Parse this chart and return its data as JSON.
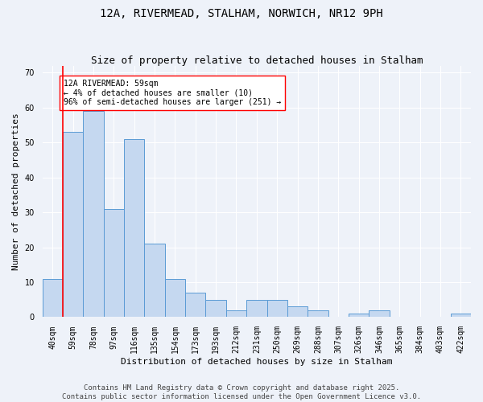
{
  "title1": "12A, RIVERMEAD, STALHAM, NORWICH, NR12 9PH",
  "title2": "Size of property relative to detached houses in Stalham",
  "xlabel": "Distribution of detached houses by size in Stalham",
  "ylabel": "Number of detached properties",
  "categories": [
    "40sqm",
    "59sqm",
    "78sqm",
    "97sqm",
    "116sqm",
    "135sqm",
    "154sqm",
    "173sqm",
    "193sqm",
    "212sqm",
    "231sqm",
    "250sqm",
    "269sqm",
    "288sqm",
    "307sqm",
    "326sqm",
    "346sqm",
    "365sqm",
    "384sqm",
    "403sqm",
    "422sqm"
  ],
  "values": [
    11,
    53,
    59,
    31,
    51,
    21,
    11,
    7,
    5,
    2,
    5,
    5,
    3,
    2,
    0,
    1,
    2,
    0,
    0,
    0,
    1
  ],
  "bar_color": "#c5d8f0",
  "bar_edge_color": "#5b9bd5",
  "red_line_x": 0.5,
  "annotation_text": "12A RIVERMEAD: 59sqm\n← 4% of detached houses are smaller (10)\n96% of semi-detached houses are larger (251) →",
  "ylim": [
    0,
    72
  ],
  "yticks": [
    0,
    10,
    20,
    30,
    40,
    50,
    60,
    70
  ],
  "footer1": "Contains HM Land Registry data © Crown copyright and database right 2025.",
  "footer2": "Contains public sector information licensed under the Open Government Licence v3.0.",
  "background_color": "#eef2f9",
  "title_fontsize": 10,
  "subtitle_fontsize": 9,
  "axis_label_fontsize": 8,
  "tick_fontsize": 7,
  "footer_fontsize": 6.5
}
